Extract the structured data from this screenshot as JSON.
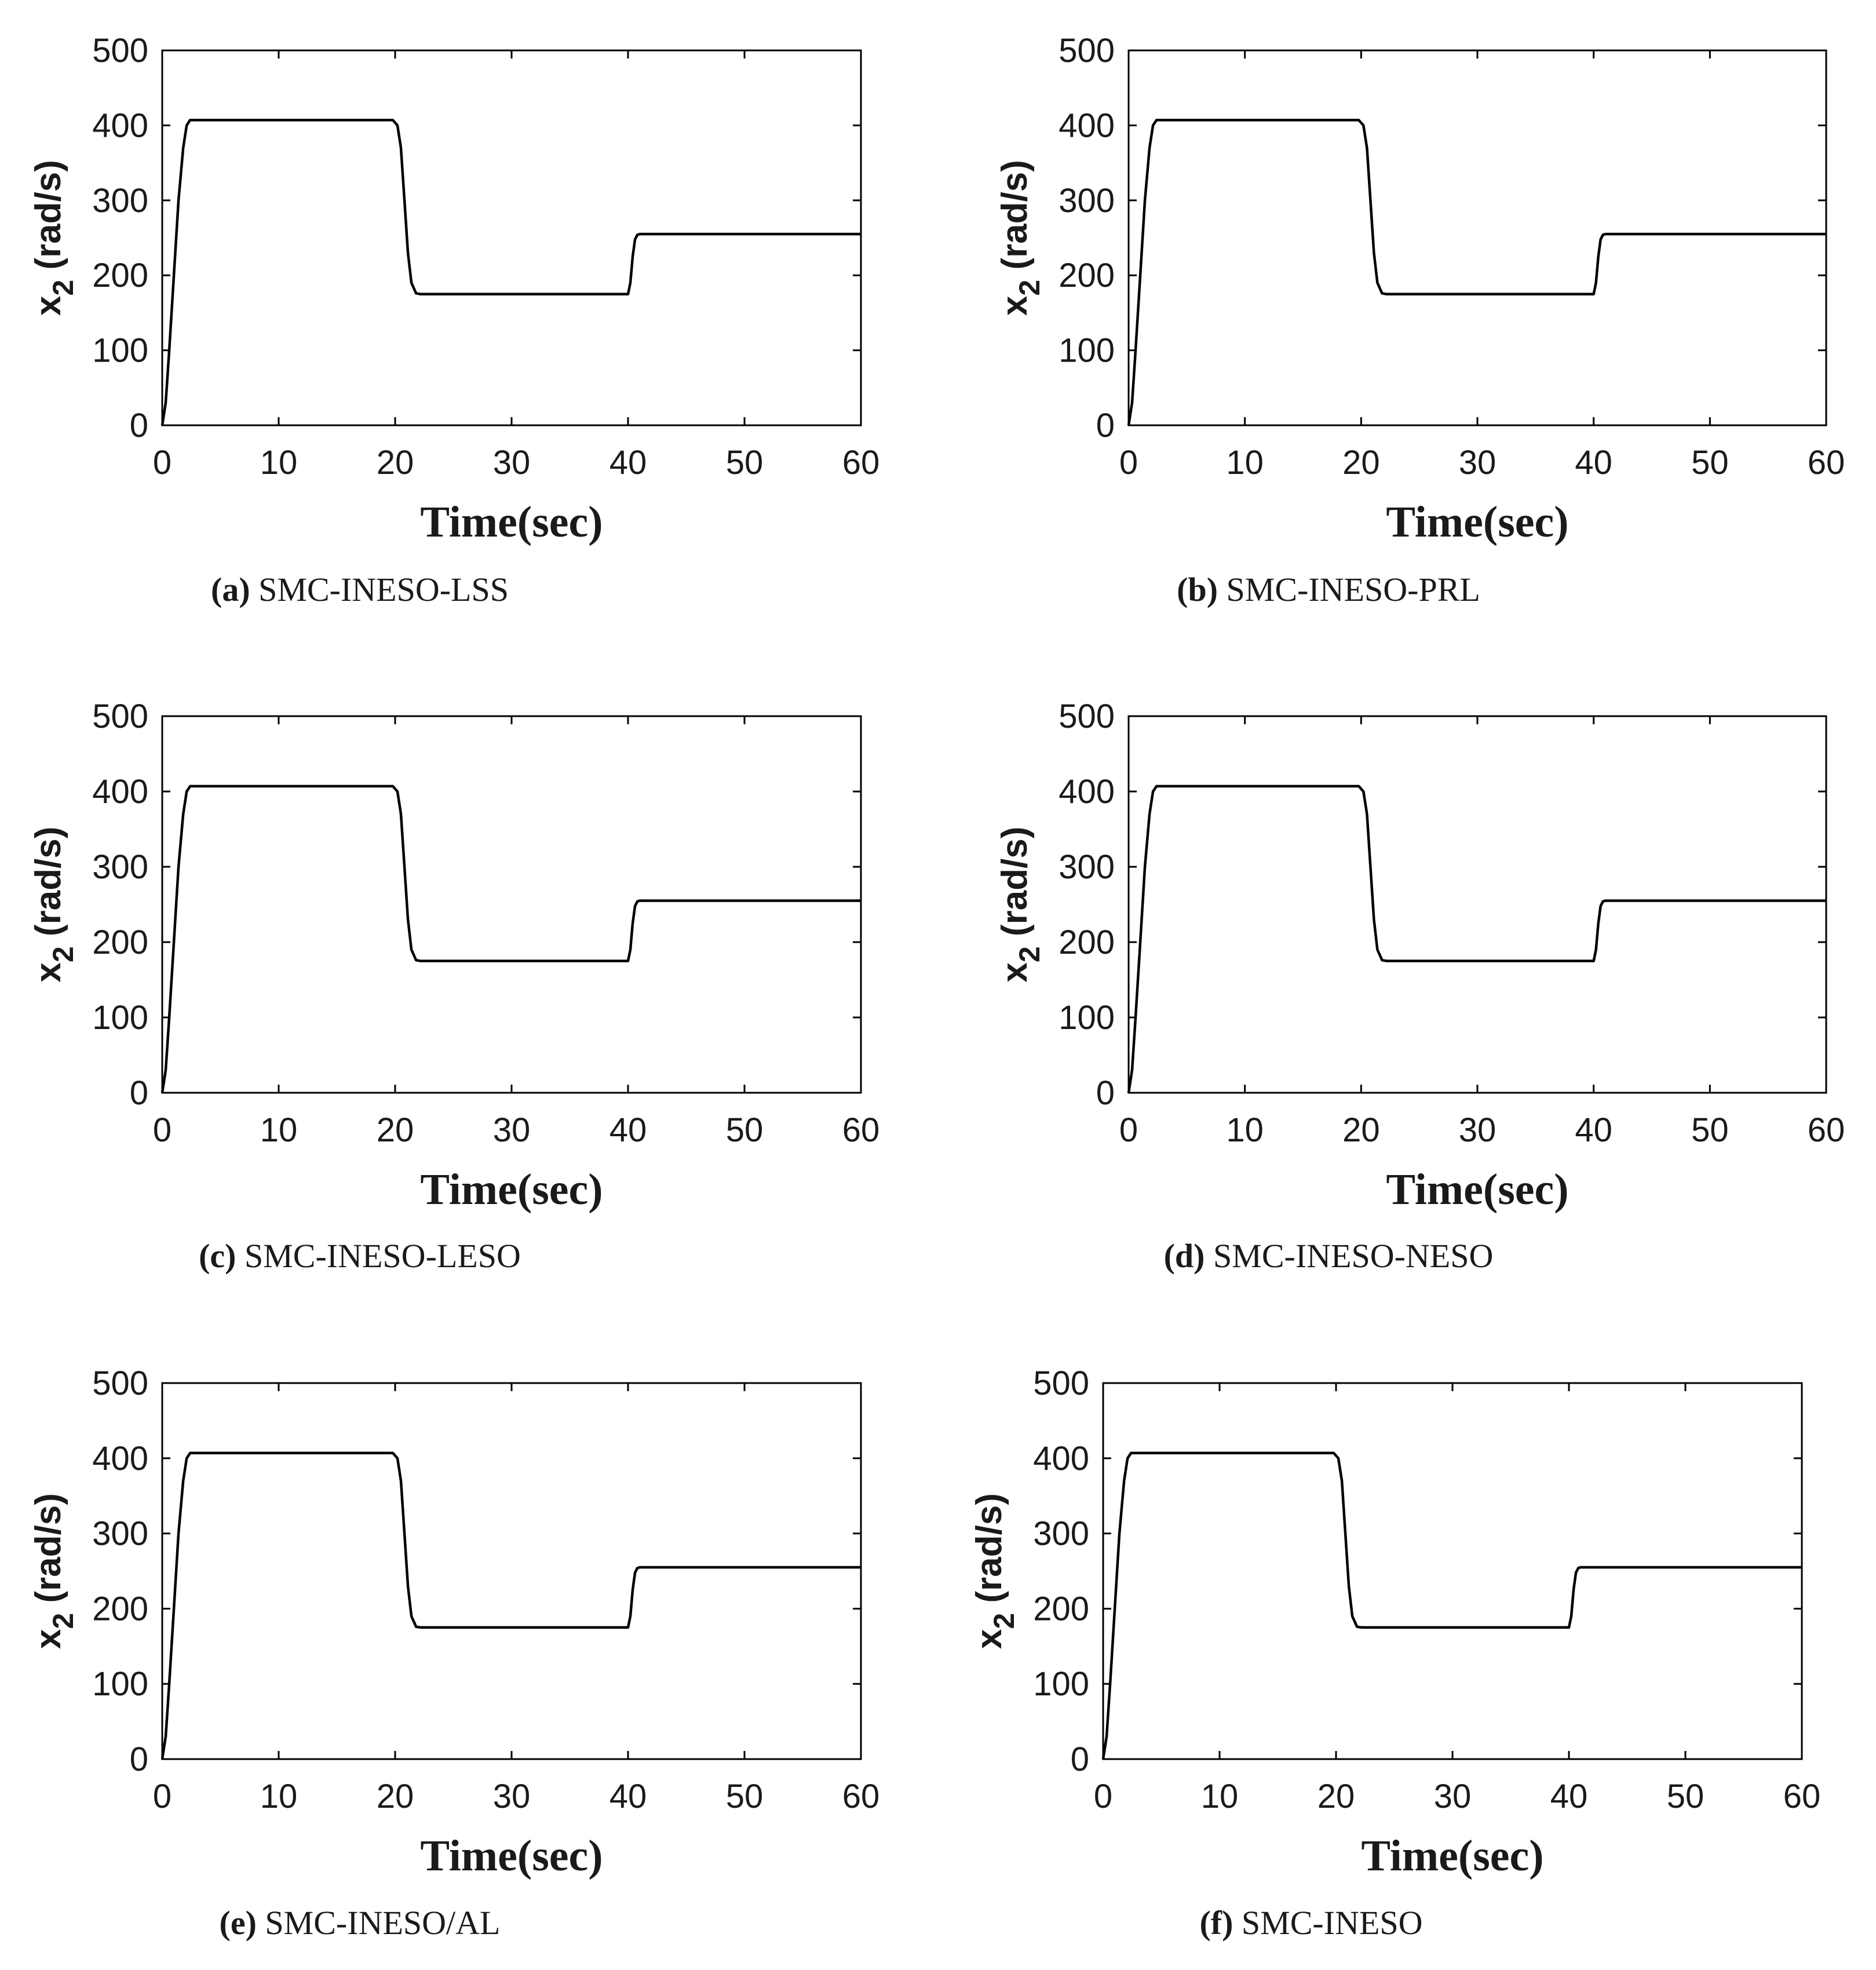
{
  "chart_data": [
    {
      "type": "line",
      "label": "(a)",
      "caption": "SMC-INESO-LSS",
      "xlabel": "Time(sec)",
      "ylabel": "x2 (rad/s)",
      "ylabel_main": "x",
      "ylabel_sub": "2",
      "ylabel_unit": "(rad/s)",
      "xlim": [
        0,
        60
      ],
      "ylim": [
        0,
        500
      ],
      "xticks": [
        0,
        10,
        20,
        30,
        40,
        50,
        60
      ],
      "yticks": [
        0,
        100,
        200,
        300,
        400,
        500
      ],
      "series": [
        {
          "name": "x2",
          "x": [
            0,
            0.3,
            0.6,
            1.0,
            1.4,
            1.8,
            2.1,
            2.4,
            5,
            10,
            15,
            19.8,
            20.2,
            20.5,
            20.8,
            21.1,
            21.4,
            21.8,
            22.2,
            30,
            40,
            40.2,
            40.4,
            40.6,
            40.8,
            41.0,
            41.5,
            50,
            60
          ],
          "values": [
            0,
            30,
            100,
            200,
            300,
            370,
            400,
            407,
            407,
            407,
            407,
            407,
            400,
            370,
            300,
            230,
            190,
            176,
            175,
            175,
            175,
            190,
            225,
            248,
            254,
            255,
            255,
            255,
            255
          ]
        }
      ]
    },
    {
      "type": "line",
      "label": "(b)",
      "caption": "SMC-INESO-PRL",
      "xlabel": "Time(sec)",
      "ylabel": "x2 (rad/s)",
      "ylabel_main": "x",
      "ylabel_sub": "2",
      "ylabel_unit": "(rad/s)",
      "xlim": [
        0,
        60
      ],
      "ylim": [
        0,
        500
      ],
      "xticks": [
        0,
        10,
        20,
        30,
        40,
        50,
        60
      ],
      "yticks": [
        0,
        100,
        200,
        300,
        400,
        500
      ],
      "series": [
        {
          "name": "x2",
          "x": [
            0,
            0.3,
            0.6,
            1.0,
            1.4,
            1.8,
            2.1,
            2.4,
            5,
            10,
            15,
            19.8,
            20.2,
            20.5,
            20.8,
            21.1,
            21.4,
            21.8,
            22.2,
            30,
            40,
            40.2,
            40.4,
            40.6,
            40.8,
            41.0,
            41.5,
            50,
            60
          ],
          "values": [
            0,
            30,
            100,
            200,
            300,
            370,
            400,
            407,
            407,
            407,
            407,
            407,
            400,
            370,
            300,
            230,
            190,
            176,
            175,
            175,
            175,
            190,
            225,
            248,
            254,
            255,
            255,
            255,
            255
          ]
        }
      ]
    },
    {
      "type": "line",
      "label": "(c)",
      "caption": "SMC-INESO-LESO",
      "xlabel": "Time(sec)",
      "ylabel": "x2 (rad/s)",
      "ylabel_main": "x",
      "ylabel_sub": "2",
      "ylabel_unit": "(rad/s)",
      "xlim": [
        0,
        60
      ],
      "ylim": [
        0,
        500
      ],
      "xticks": [
        0,
        10,
        20,
        30,
        40,
        50,
        60
      ],
      "yticks": [
        0,
        100,
        200,
        300,
        400,
        500
      ],
      "series": [
        {
          "name": "x2",
          "x": [
            0,
            0.3,
            0.6,
            1.0,
            1.4,
            1.8,
            2.1,
            2.4,
            5,
            10,
            15,
            19.8,
            20.2,
            20.5,
            20.8,
            21.1,
            21.4,
            21.8,
            22.2,
            30,
            40,
            40.2,
            40.4,
            40.6,
            40.8,
            41.0,
            41.5,
            50,
            60
          ],
          "values": [
            0,
            30,
            100,
            200,
            300,
            370,
            400,
            407,
            407,
            407,
            407,
            407,
            400,
            370,
            300,
            230,
            190,
            176,
            175,
            175,
            175,
            190,
            225,
            248,
            254,
            255,
            255,
            255,
            255
          ]
        }
      ]
    },
    {
      "type": "line",
      "label": "(d)",
      "caption": "SMC-INESO-NESO",
      "xlabel": "Time(sec)",
      "ylabel": "x2 (rad/s)",
      "ylabel_main": "x",
      "ylabel_sub": "2",
      "ylabel_unit": "(rad/s)",
      "xlim": [
        0,
        60
      ],
      "ylim": [
        0,
        500
      ],
      "xticks": [
        0,
        10,
        20,
        30,
        40,
        50,
        60
      ],
      "yticks": [
        0,
        100,
        200,
        300,
        400,
        500
      ],
      "series": [
        {
          "name": "x2",
          "x": [
            0,
            0.3,
            0.6,
            1.0,
            1.4,
            1.8,
            2.1,
            2.4,
            5,
            10,
            15,
            19.8,
            20.2,
            20.5,
            20.8,
            21.1,
            21.4,
            21.8,
            22.2,
            30,
            40,
            40.2,
            40.4,
            40.6,
            40.8,
            41.0,
            41.5,
            50,
            60
          ],
          "values": [
            0,
            30,
            100,
            200,
            300,
            370,
            400,
            407,
            407,
            407,
            407,
            407,
            400,
            370,
            300,
            230,
            190,
            176,
            175,
            175,
            175,
            190,
            225,
            248,
            254,
            255,
            255,
            255,
            255
          ]
        }
      ]
    },
    {
      "type": "line",
      "label": "(e)",
      "caption": "SMC-INESO/AL",
      "xlabel": "Time(sec)",
      "ylabel": "x2 (rad/s)",
      "ylabel_main": "x",
      "ylabel_sub": "2",
      "ylabel_unit": "(rad/s)",
      "xlim": [
        0,
        60
      ],
      "ylim": [
        0,
        500
      ],
      "xticks": [
        0,
        10,
        20,
        30,
        40,
        50,
        60
      ],
      "yticks": [
        0,
        100,
        200,
        300,
        400,
        500
      ],
      "series": [
        {
          "name": "x2",
          "x": [
            0,
            0.3,
            0.6,
            1.0,
            1.4,
            1.8,
            2.1,
            2.4,
            5,
            10,
            15,
            19.8,
            20.2,
            20.5,
            20.8,
            21.1,
            21.4,
            21.8,
            22.2,
            30,
            40,
            40.2,
            40.4,
            40.6,
            40.8,
            41.0,
            41.5,
            50,
            60
          ],
          "values": [
            0,
            30,
            100,
            200,
            300,
            370,
            400,
            407,
            407,
            407,
            407,
            407,
            400,
            370,
            300,
            230,
            190,
            176,
            175,
            175,
            175,
            190,
            225,
            248,
            254,
            255,
            255,
            255,
            255
          ]
        }
      ]
    },
    {
      "type": "line",
      "label": "(f)",
      "caption": "SMC-INESO",
      "xlabel": "Time(sec)",
      "ylabel": "x2 (rad/s)",
      "ylabel_main": "x",
      "ylabel_sub": "2",
      "ylabel_unit": "(rad/s)",
      "xlim": [
        0,
        60
      ],
      "ylim": [
        0,
        500
      ],
      "xticks": [
        0,
        10,
        20,
        30,
        40,
        50,
        60
      ],
      "yticks": [
        0,
        100,
        200,
        300,
        400,
        500
      ],
      "series": [
        {
          "name": "x2",
          "x": [
            0,
            0.3,
            0.6,
            1.0,
            1.4,
            1.8,
            2.1,
            2.4,
            5,
            10,
            15,
            19.8,
            20.2,
            20.5,
            20.8,
            21.1,
            21.4,
            21.8,
            22.2,
            30,
            40,
            40.2,
            40.4,
            40.6,
            40.8,
            41.0,
            41.5,
            50,
            60
          ],
          "values": [
            0,
            30,
            100,
            200,
            300,
            370,
            400,
            407,
            407,
            407,
            407,
            407,
            400,
            370,
            300,
            230,
            190,
            176,
            175,
            175,
            175,
            190,
            225,
            248,
            254,
            255,
            255,
            255,
            255
          ]
        }
      ]
    }
  ]
}
